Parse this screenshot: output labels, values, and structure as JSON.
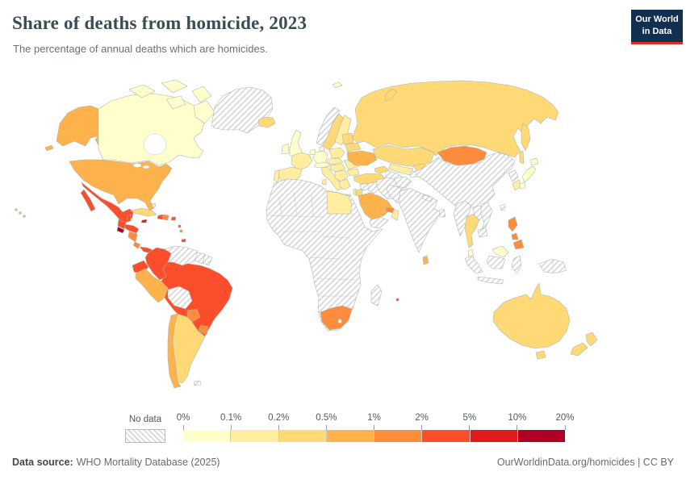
{
  "header": {
    "title": "Share of deaths from homicide, 2023",
    "subtitle": "The percentage of annual deaths which are homicides.",
    "logo_line1": "Our World",
    "logo_line2": "in Data"
  },
  "legend": {
    "no_data_label": "No data"
  },
  "footer": {
    "source_label": "Data source:",
    "source_text": "WHO Mortality Database (2025)",
    "credit": "OurWorldinData.org/homicides | CC BY"
  },
  "chart_data": {
    "type": "choropleth",
    "title": "Share of deaths from homicide, 2023",
    "unit": "%",
    "legend_position": "bottom",
    "bin_edges": [
      "0%",
      "0.1%",
      "0.2%",
      "0.5%",
      "1%",
      "2%",
      "5%",
      "10%",
      "20%"
    ],
    "bin_colors": [
      "#ffffcc",
      "#ffeda0",
      "#fed976",
      "#feb24c",
      "#fd8d3c",
      "#fc4e2a",
      "#e31a1c",
      "#b10026"
    ],
    "no_data_label": "No data",
    "countries": [
      {
        "id": "canada",
        "name": "Canada",
        "bin": "0–0.1%",
        "color": "#ffffcc"
      },
      {
        "id": "greenland",
        "name": "Greenland",
        "bin": "No data",
        "color": "no-data"
      },
      {
        "id": "usa",
        "name": "United States",
        "bin": "0.5–1%",
        "color": "#feb24c"
      },
      {
        "id": "mexico",
        "name": "Mexico",
        "bin": "2–5%",
        "color": "#fc4e2a"
      },
      {
        "id": "guatemala",
        "name": "Guatemala",
        "bin": "2–5%",
        "color": "#fc4e2a"
      },
      {
        "id": "belize",
        "name": "Belize",
        "bin": "2–5%",
        "color": "#fc4e2a"
      },
      {
        "id": "el-salvador",
        "name": "El Salvador",
        "bin": "10–20%",
        "color": "#b10026"
      },
      {
        "id": "honduras",
        "name": "Honduras",
        "bin": "2–5%",
        "color": "#fc4e2a"
      },
      {
        "id": "nicaragua",
        "name": "Nicaragua",
        "bin": "1–2%",
        "color": "#fd8d3c"
      },
      {
        "id": "costa-rica",
        "name": "Costa Rica",
        "bin": "1–2%",
        "color": "#fd8d3c"
      },
      {
        "id": "panama",
        "name": "Panama",
        "bin": "2–5%",
        "color": "#fc4e2a"
      },
      {
        "id": "cuba",
        "name": "Cuba",
        "bin": "0.2–0.5%",
        "color": "#fed976"
      },
      {
        "id": "jamaica",
        "name": "Jamaica",
        "bin": "5–10%",
        "color": "#e31a1c"
      },
      {
        "id": "haiti",
        "name": "Haiti",
        "bin": "2–5%",
        "color": "#fc4e2a"
      },
      {
        "id": "dominican-republic",
        "name": "Dominican Republic",
        "bin": "1–2%",
        "color": "#fd8d3c"
      },
      {
        "id": "puerto-rico",
        "name": "Puerto Rico",
        "bin": "2–5%",
        "color": "#fc4e2a"
      },
      {
        "id": "bahamas",
        "name": "Bahamas",
        "bin": "0.1–0.2%",
        "color": "#ffeda0"
      },
      {
        "id": "lesser-antilles-1",
        "name": "Lesser Antilles",
        "bin": "2–5%",
        "color": "#fc4e2a"
      },
      {
        "id": "lesser-antilles-2",
        "name": "Lesser Antilles",
        "bin": "1–2%",
        "color": "#fd8d3c"
      },
      {
        "id": "trinidad-and-tobago",
        "name": "Trinidad and Tobago",
        "bin": "2–5%",
        "color": "#fc4e2a"
      },
      {
        "id": "colombia",
        "name": "Colombia",
        "bin": "2–5%",
        "color": "#fc4e2a"
      },
      {
        "id": "venezuela",
        "name": "Venezuela",
        "bin": "No data",
        "color": "no-data"
      },
      {
        "id": "guyana",
        "name": "Guyana",
        "bin": "No data",
        "color": "no-data"
      },
      {
        "id": "suriname",
        "name": "Suriname",
        "bin": "No data",
        "color": "no-data"
      },
      {
        "id": "ecuador",
        "name": "Ecuador",
        "bin": "2–5%",
        "color": "#fc4e2a"
      },
      {
        "id": "peru",
        "name": "Peru",
        "bin": "0.5–1%",
        "color": "#feb24c"
      },
      {
        "id": "brazil",
        "name": "Brazil",
        "bin": "2–5%",
        "color": "#fc4e2a"
      },
      {
        "id": "bolivia",
        "name": "Bolivia",
        "bin": "No data",
        "color": "no-data"
      },
      {
        "id": "paraguay",
        "name": "Paraguay",
        "bin": "1–2%",
        "color": "#fd8d3c"
      },
      {
        "id": "uruguay",
        "name": "Uruguay",
        "bin": "1–2%",
        "color": "#fd8d3c"
      },
      {
        "id": "argentina",
        "name": "Argentina",
        "bin": "0.2–0.5%",
        "color": "#fed976"
      },
      {
        "id": "chile",
        "name": "Chile",
        "bin": "0.5–1%",
        "color": "#feb24c"
      },
      {
        "id": "falkland-islands",
        "name": "Falkland Islands",
        "bin": "No data",
        "color": "no-data"
      },
      {
        "id": "iceland",
        "name": "Iceland",
        "bin": "0.2–0.5%",
        "color": "#fed976"
      },
      {
        "id": "svalbard",
        "name": "Svalbard",
        "bin": "0–0.1%",
        "color": "#ffffcc"
      },
      {
        "id": "norway",
        "name": "Norway",
        "bin": "No data",
        "color": "no-data"
      },
      {
        "id": "sweden",
        "name": "Sweden",
        "bin": "0.2–0.5%",
        "color": "#fed976"
      },
      {
        "id": "finland",
        "name": "Finland",
        "bin": "0.1–0.2%",
        "color": "#ffeda0"
      },
      {
        "id": "denmark",
        "name": "Denmark",
        "bin": "0–0.1%",
        "color": "#ffffcc"
      },
      {
        "id": "uk",
        "name": "United Kingdom",
        "bin": "0–0.1%",
        "color": "#ffffcc"
      },
      {
        "id": "ireland",
        "name": "Ireland",
        "bin": "0–0.1%",
        "color": "#ffffcc"
      },
      {
        "id": "germany",
        "name": "Germany",
        "bin": "0–0.1%",
        "color": "#ffffcc"
      },
      {
        "id": "benelux",
        "name": "Benelux",
        "bin": "0–0.1%",
        "color": "#ffffcc"
      },
      {
        "id": "france",
        "name": "France",
        "bin": "0.1–0.2%",
        "color": "#ffeda0"
      },
      {
        "id": "spain",
        "name": "Spain",
        "bin": "0.1–0.2%",
        "color": "#ffeda0"
      },
      {
        "id": "portugal",
        "name": "Portugal",
        "bin": "0.1–0.2%",
        "color": "#ffeda0"
      },
      {
        "id": "switzerland-austria",
        "name": "Switzerland / Austria",
        "bin": "0–0.1%",
        "color": "#ffffcc"
      },
      {
        "id": "italy",
        "name": "Italy",
        "bin": "0.1–0.2%",
        "color": "#ffeda0"
      },
      {
        "id": "poland",
        "name": "Poland",
        "bin": "0.1–0.2%",
        "color": "#ffeda0"
      },
      {
        "id": "czechia-slovakia",
        "name": "Czechia / Slovakia",
        "bin": "0.1–0.2%",
        "color": "#ffeda0"
      },
      {
        "id": "hungary-croatia",
        "name": "Hungary / Croatia",
        "bin": "0.1–0.2%",
        "color": "#ffeda0"
      },
      {
        "id": "balkans",
        "name": "Balkans",
        "bin": "0.1–0.2%",
        "color": "#ffeda0"
      },
      {
        "id": "greece",
        "name": "Greece",
        "bin": "0.1–0.2%",
        "color": "#ffeda0"
      },
      {
        "id": "romania",
        "name": "Romania",
        "bin": "0.1–0.2%",
        "color": "#ffeda0"
      },
      {
        "id": "bulgaria",
        "name": "Bulgaria",
        "bin": "0.1–0.2%",
        "color": "#ffeda0"
      },
      {
        "id": "baltic-states",
        "name": "Baltic states",
        "bin": "0.2–0.5%",
        "color": "#fed976"
      },
      {
        "id": "belarus",
        "name": "Belarus",
        "bin": "0.2–0.5%",
        "color": "#fed976"
      },
      {
        "id": "ukraine",
        "name": "Ukraine",
        "bin": "0.5–1%",
        "color": "#feb24c"
      },
      {
        "id": "russia",
        "name": "Russia",
        "bin": "0.2–0.5%",
        "color": "#fed976"
      },
      {
        "id": "kazakhstan",
        "name": "Kazakhstan",
        "bin": "0.2–0.5%",
        "color": "#fed976"
      },
      {
        "id": "uzbekistan",
        "name": "Uzbekistan",
        "bin": "0.1–0.2%",
        "color": "#ffeda0"
      },
      {
        "id": "kyrgyzstan",
        "name": "Kyrgyzstan",
        "bin": "0.2–0.5%",
        "color": "#fed976"
      },
      {
        "id": "turkmenistan",
        "name": "Turkmenistan",
        "bin": "No data",
        "color": "no-data"
      },
      {
        "id": "tajikistan",
        "name": "Tajikistan",
        "bin": "No data",
        "color": "no-data"
      },
      {
        "id": "caucasus",
        "name": "Caucasus",
        "bin": "0.2–0.5%",
        "color": "#fed976"
      },
      {
        "id": "turkey",
        "name": "Turkey",
        "bin": "0.2–0.5%",
        "color": "#fed976"
      },
      {
        "id": "cyprus",
        "name": "Cyprus",
        "bin": "0.2–0.5%",
        "color": "#fed976"
      },
      {
        "id": "syria",
        "name": "Syria",
        "bin": "No data",
        "color": "no-data"
      },
      {
        "id": "israel",
        "name": "Israel",
        "bin": "0.1–0.2%",
        "color": "#ffeda0"
      },
      {
        "id": "jordan",
        "name": "Jordan",
        "bin": "0.2–0.5%",
        "color": "#fed976"
      },
      {
        "id": "iraq",
        "name": "Iraq",
        "bin": "No data",
        "color": "no-data"
      },
      {
        "id": "iran",
        "name": "Iran",
        "bin": "No data",
        "color": "no-data"
      },
      {
        "id": "saudi-arabia",
        "name": "Saudi Arabia",
        "bin": "0.5–1%",
        "color": "#feb24c"
      },
      {
        "id": "yemen",
        "name": "Yemen",
        "bin": "No data",
        "color": "no-data"
      },
      {
        "id": "oman",
        "name": "Oman",
        "bin": "0.1–0.2%",
        "color": "#ffeda0"
      },
      {
        "id": "uae",
        "name": "United Arab Emirates",
        "bin": "1–2%",
        "color": "#fd8d3c"
      },
      {
        "id": "egypt",
        "name": "Egypt",
        "bin": "0.1–0.2%",
        "color": "#ffeda0"
      },
      {
        "id": "africa-region",
        "name": "Africa (most countries)",
        "bin": "No data",
        "color": "no-data"
      },
      {
        "id": "south-africa",
        "name": "South Africa",
        "bin": "1–2%",
        "color": "#fd8d3c"
      },
      {
        "id": "lesotho",
        "name": "Lesotho",
        "bin": "No data",
        "color": "no-data"
      },
      {
        "id": "madagascar",
        "name": "Madagascar",
        "bin": "No data",
        "color": "no-data"
      },
      {
        "id": "mauritius",
        "name": "Mauritius",
        "bin": "2–5%",
        "color": "#fc4e2a"
      },
      {
        "id": "afghanistan",
        "name": "Afghanistan",
        "bin": "No data",
        "color": "no-data"
      },
      {
        "id": "pakistan",
        "name": "Pakistan",
        "bin": "No data",
        "color": "no-data"
      },
      {
        "id": "india",
        "name": "India",
        "bin": "No data",
        "color": "no-data"
      },
      {
        "id": "nepal",
        "name": "Nepal",
        "bin": "No data",
        "color": "no-data"
      },
      {
        "id": "bangladesh",
        "name": "Bangladesh",
        "bin": "No data",
        "color": "no-data"
      },
      {
        "id": "sri-lanka",
        "name": "Sri Lanka",
        "bin": "0.5–1%",
        "color": "#feb24c"
      },
      {
        "id": "china",
        "name": "China",
        "bin": "No data",
        "color": "no-data"
      },
      {
        "id": "taiwan",
        "name": "Taiwan",
        "bin": "No data",
        "color": "no-data"
      },
      {
        "id": "mongolia",
        "name": "Mongolia",
        "bin": "1–2%",
        "color": "#fd8d3c"
      },
      {
        "id": "north-korea",
        "name": "North Korea",
        "bin": "No data",
        "color": "no-data"
      },
      {
        "id": "south-korea",
        "name": "South Korea",
        "bin": "0.1–0.2%",
        "color": "#ffeda0"
      },
      {
        "id": "japan",
        "name": "Japan",
        "bin": "0–0.1%",
        "color": "#ffffcc"
      },
      {
        "id": "myanmar",
        "name": "Myanmar",
        "bin": "No data",
        "color": "no-data"
      },
      {
        "id": "thailand",
        "name": "Thailand",
        "bin": "0.2–0.5%",
        "color": "#fed976"
      },
      {
        "id": "laos",
        "name": "Laos",
        "bin": "No data",
        "color": "no-data"
      },
      {
        "id": "vietnam",
        "name": "Vietnam",
        "bin": "No data",
        "color": "no-data"
      },
      {
        "id": "cambodia",
        "name": "Cambodia",
        "bin": "No data",
        "color": "no-data"
      },
      {
        "id": "malaysia",
        "name": "Malaysia",
        "bin": "0–0.1%",
        "color": "#ffffcc"
      },
      {
        "id": "indonesia",
        "name": "Indonesia",
        "bin": "No data",
        "color": "no-data"
      },
      {
        "id": "papua-new-guinea",
        "name": "Papua New Guinea",
        "bin": "No data",
        "color": "no-data"
      },
      {
        "id": "philippines",
        "name": "Philippines",
        "bin": "1–2%",
        "color": "#fd8d3c"
      },
      {
        "id": "australia",
        "name": "Australia",
        "bin": "0.2–0.5%",
        "color": "#fed976"
      },
      {
        "id": "new-zealand",
        "name": "New Zealand",
        "bin": "0.2–0.5%",
        "color": "#fed976"
      }
    ]
  }
}
